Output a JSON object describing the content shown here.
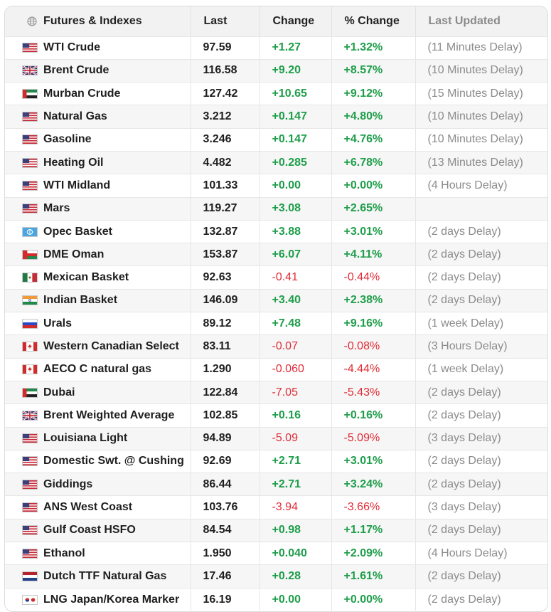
{
  "table": {
    "headers": {
      "name": "Futures & Indexes",
      "last": "Last",
      "change": "Change",
      "pct_change": "% Change",
      "updated": "Last Updated"
    },
    "header_icon": "globe-icon",
    "colors": {
      "positive": "#1e9e4a",
      "negative": "#e02b35",
      "muted": "#8b8b8b",
      "header_bg": "#f2f2f2",
      "stripe_bg": "#f6f6f6"
    },
    "rows": [
      {
        "flag": "us",
        "name": "WTI Crude",
        "last": "97.59",
        "change": "+1.27",
        "pct": "+1.32%",
        "updated": "(11 Minutes Delay)"
      },
      {
        "flag": "uk",
        "name": "Brent Crude",
        "last": "116.58",
        "change": "+9.20",
        "pct": "+8.57%",
        "updated": "(10 Minutes Delay)"
      },
      {
        "flag": "ae",
        "name": "Murban Crude",
        "last": "127.42",
        "change": "+10.65",
        "pct": "+9.12%",
        "updated": "(15 Minutes Delay)"
      },
      {
        "flag": "us",
        "name": "Natural Gas",
        "last": "3.212",
        "change": "+0.147",
        "pct": "+4.80%",
        "updated": "(10 Minutes Delay)"
      },
      {
        "flag": "us",
        "name": "Gasoline",
        "last": "3.246",
        "change": "+0.147",
        "pct": "+4.76%",
        "updated": "(10 Minutes Delay)"
      },
      {
        "flag": "us",
        "name": "Heating Oil",
        "last": "4.482",
        "change": "+0.285",
        "pct": "+6.78%",
        "updated": "(13 Minutes Delay)"
      },
      {
        "flag": "us",
        "name": "WTI Midland",
        "last": "101.33",
        "change": "+0.00",
        "pct": "+0.00%",
        "updated": "(4 Hours Delay)"
      },
      {
        "flag": "us",
        "name": "Mars",
        "last": "119.27",
        "change": "+3.08",
        "pct": "+2.65%",
        "updated": ""
      },
      {
        "flag": "opec",
        "name": "Opec Basket",
        "last": "132.87",
        "change": "+3.88",
        "pct": "+3.01%",
        "updated": "(2 days Delay)"
      },
      {
        "flag": "om",
        "name": "DME Oman",
        "last": "153.87",
        "change": "+6.07",
        "pct": "+4.11%",
        "updated": "(2 days Delay)"
      },
      {
        "flag": "mx",
        "name": "Mexican Basket",
        "last": "92.63",
        "change": "-0.41",
        "pct": "-0.44%",
        "updated": "(2 days Delay)"
      },
      {
        "flag": "in",
        "name": "Indian Basket",
        "last": "146.09",
        "change": "+3.40",
        "pct": "+2.38%",
        "updated": "(2 days Delay)"
      },
      {
        "flag": "ru",
        "name": "Urals",
        "last": "89.12",
        "change": "+7.48",
        "pct": "+9.16%",
        "updated": "(1 week Delay)"
      },
      {
        "flag": "ca",
        "name": "Western Canadian Select",
        "last": "83.11",
        "change": "-0.07",
        "pct": "-0.08%",
        "updated": "(3 Hours Delay)"
      },
      {
        "flag": "ca",
        "name": "AECO C natural gas",
        "last": "1.290",
        "change": "-0.060",
        "pct": "-4.44%",
        "updated": "(1 week Delay)"
      },
      {
        "flag": "ae",
        "name": "Dubai",
        "last": "122.84",
        "change": "-7.05",
        "pct": "-5.43%",
        "updated": "(2 days Delay)"
      },
      {
        "flag": "uk",
        "name": "Brent Weighted Average",
        "last": "102.85",
        "change": "+0.16",
        "pct": "+0.16%",
        "updated": "(2 days Delay)"
      },
      {
        "flag": "us",
        "name": "Louisiana Light",
        "last": "94.89",
        "change": "-5.09",
        "pct": "-5.09%",
        "updated": "(3 days Delay)"
      },
      {
        "flag": "us",
        "name": "Domestic Swt. @ Cushing",
        "last": "92.69",
        "change": "+2.71",
        "pct": "+3.01%",
        "updated": "(2 days Delay)"
      },
      {
        "flag": "us",
        "name": "Giddings",
        "last": "86.44",
        "change": "+2.71",
        "pct": "+3.24%",
        "updated": "(2 days Delay)"
      },
      {
        "flag": "us",
        "name": "ANS West Coast",
        "last": "103.76",
        "change": "-3.94",
        "pct": "-3.66%",
        "updated": "(3 days Delay)"
      },
      {
        "flag": "us",
        "name": "Gulf Coast HSFO",
        "last": "84.54",
        "change": "+0.98",
        "pct": "+1.17%",
        "updated": "(2 days Delay)"
      },
      {
        "flag": "us",
        "name": "Ethanol",
        "last": "1.950",
        "change": "+0.040",
        "pct": "+2.09%",
        "updated": "(4 Hours Delay)"
      },
      {
        "flag": "nl",
        "name": "Dutch TTF Natural Gas",
        "last": "17.46",
        "change": "+0.28",
        "pct": "+1.61%",
        "updated": "(2 days Delay)"
      },
      {
        "flag": "jpkr",
        "name": "LNG Japan/Korea Marker",
        "last": "16.19",
        "change": "+0.00",
        "pct": "+0.00%",
        "updated": "(2 days Delay)"
      }
    ]
  }
}
